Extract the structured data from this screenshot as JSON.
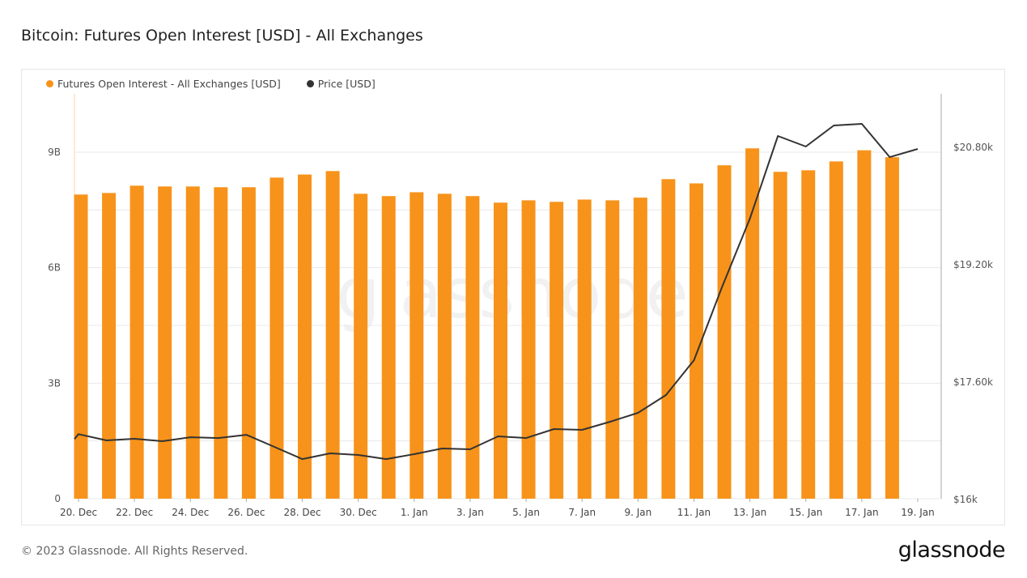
{
  "title": "Bitcoin: Futures Open Interest [USD] - All Exchanges",
  "footer": "© 2023 Glassnode. All Rights Reserved.",
  "logo": "glassnode",
  "watermark": "glassnode",
  "colors": {
    "bars": "#f7931a",
    "price": "#333333",
    "grid": "#e8e8e8"
  },
  "chart_data": {
    "type": "bar+line",
    "x_tick_labels": [
      "20. Dec",
      "22. Dec",
      "24. Dec",
      "26. Dec",
      "28. Dec",
      "30. Dec",
      "1. Jan",
      "3. Jan",
      "5. Jan",
      "7. Jan",
      "9. Jan",
      "11. Jan",
      "13. Jan",
      "15. Jan",
      "17. Jan",
      "19. Jan"
    ],
    "dates": [
      "2022-12-20",
      "2022-12-21",
      "2022-12-22",
      "2022-12-23",
      "2022-12-24",
      "2022-12-25",
      "2022-12-26",
      "2022-12-27",
      "2022-12-28",
      "2022-12-29",
      "2022-12-30",
      "2022-12-31",
      "2023-01-01",
      "2023-01-02",
      "2023-01-03",
      "2023-01-04",
      "2023-01-05",
      "2023-01-06",
      "2023-01-07",
      "2023-01-08",
      "2023-01-09",
      "2023-01-10",
      "2023-01-11",
      "2023-01-12",
      "2023-01-13",
      "2023-01-14",
      "2023-01-15",
      "2023-01-16",
      "2023-01-17",
      "2023-01-18",
      "2023-01-19"
    ],
    "left_axis": {
      "ticks": [
        "0",
        "3B",
        "6B",
        "9B"
      ],
      "tick_values": [
        0,
        3,
        6,
        9
      ],
      "unit": "billion USD",
      "range": [
        0,
        10.5
      ]
    },
    "right_axis": {
      "ticks": [
        "$16k",
        "$17.60k",
        "$19.20k",
        "$20.80k"
      ],
      "tick_values": [
        16000,
        17600,
        19200,
        20800
      ],
      "range": [
        16000,
        21520
      ]
    },
    "grid": true,
    "legend_position": "top-left",
    "series": [
      {
        "name": "Futures Open Interest - All Exchanges [USD]",
        "type": "bar",
        "axis": "left",
        "values": [
          7.9,
          7.94,
          8.13,
          8.11,
          8.11,
          8.09,
          8.09,
          8.34,
          8.42,
          8.51,
          7.92,
          7.86,
          7.96,
          7.92,
          7.86,
          7.69,
          7.75,
          7.71,
          7.77,
          7.75,
          7.82,
          8.3,
          8.19,
          8.66,
          9.1,
          8.49,
          8.53,
          8.76,
          9.05,
          8.87,
          null
        ]
      },
      {
        "name": "Price [USD]",
        "type": "line",
        "axis": "right",
        "values": [
          16880,
          16794,
          16816,
          16783,
          16838,
          16827,
          16871,
          16706,
          16540,
          16618,
          16596,
          16540,
          16607,
          16684,
          16673,
          16850,
          16827,
          16949,
          16938,
          17048,
          17170,
          17412,
          17887,
          18880,
          19818,
          20943,
          20800,
          21087,
          21109,
          20656,
          20767
        ]
      }
    ]
  }
}
